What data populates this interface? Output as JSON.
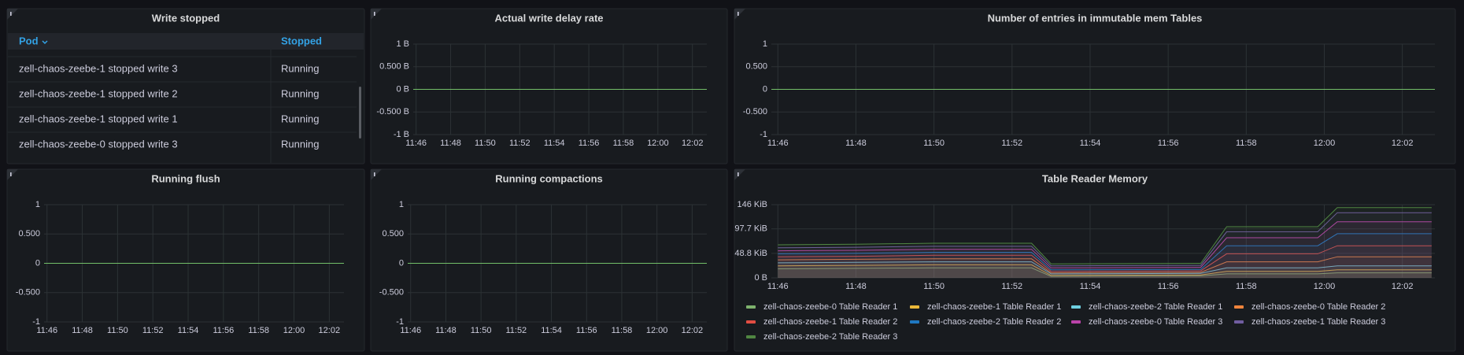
{
  "table_panel": {
    "title": "Write stopped",
    "columns": [
      "Pod",
      "Stopped"
    ],
    "rows": [
      [
        "zell-chaos-zeebe-1 stopped write 3",
        "Running"
      ],
      [
        "zell-chaos-zeebe-1 stopped write 2",
        "Running"
      ],
      [
        "zell-chaos-zeebe-1 stopped write 1",
        "Running"
      ],
      [
        "zell-chaos-zeebe-0 stopped write 3",
        "Running"
      ]
    ]
  },
  "chart_data": [
    {
      "type": "line",
      "title": "Actual write delay rate",
      "grid": true,
      "x": [
        "11:45:50",
        "12:02:50"
      ],
      "xlim": [
        "11:45:50",
        "12:02:50"
      ],
      "xticks": [
        "11:46",
        "11:48",
        "11:50",
        "11:52",
        "11:54",
        "11:56",
        "11:58",
        "12:00",
        "12:02"
      ],
      "ylim": [
        -1,
        1
      ],
      "yticks": [
        {
          "value": -1,
          "label": "-1 B"
        },
        {
          "value": -0.5,
          "label": "-0.500 B"
        },
        {
          "value": 0,
          "label": "0 B"
        },
        {
          "value": 0.5,
          "label": "0.500 B"
        },
        {
          "value": 1,
          "label": "1 B"
        }
      ],
      "series": [
        {
          "color": "#73bf69",
          "values": [
            0,
            0
          ]
        }
      ]
    },
    {
      "type": "line",
      "title": "Number of entries in immutable mem Tables",
      "grid": true,
      "x": [
        "11:45:50",
        "12:02:50"
      ],
      "xlim": [
        "11:45:50",
        "12:02:50"
      ],
      "xticks": [
        "11:46",
        "11:48",
        "11:50",
        "11:52",
        "11:54",
        "11:56",
        "11:58",
        "12:00",
        "12:02"
      ],
      "ylim": [
        -1,
        1
      ],
      "yticks": [
        -1,
        {
          "value": -0.5,
          "label": "-0.500"
        },
        0,
        {
          "value": 0.5,
          "label": "0.500"
        },
        1
      ],
      "series": [
        {
          "color": "#73bf69",
          "values": [
            0,
            0
          ]
        }
      ]
    },
    {
      "type": "line",
      "title": "Running flush",
      "grid": true,
      "x": [
        "11:45:50",
        "12:02:50"
      ],
      "xlim": [
        "11:45:50",
        "12:02:50"
      ],
      "xticks": [
        "11:46",
        "11:48",
        "11:50",
        "11:52",
        "11:54",
        "11:56",
        "11:58",
        "12:00",
        "12:02"
      ],
      "ylim": [
        -1,
        1
      ],
      "yticks": [
        -1,
        {
          "value": -0.5,
          "label": "-0.500"
        },
        0,
        {
          "value": 0.5,
          "label": "0.500"
        },
        1
      ],
      "series": [
        {
          "color": "#73bf69",
          "values": [
            0,
            0
          ]
        }
      ]
    },
    {
      "type": "line",
      "title": "Running compactions",
      "grid": true,
      "x": [
        "11:45:50",
        "12:02:50"
      ],
      "xlim": [
        "11:45:50",
        "12:02:50"
      ],
      "xticks": [
        "11:46",
        "11:48",
        "11:50",
        "11:52",
        "11:54",
        "11:56",
        "11:58",
        "12:00",
        "12:02"
      ],
      "ylim": [
        -1,
        1
      ],
      "yticks": [
        -1,
        {
          "value": -0.5,
          "label": "-0.500"
        },
        0,
        {
          "value": 0.5,
          "label": "0.500"
        },
        1
      ],
      "series": [
        {
          "color": "#73bf69",
          "values": [
            0,
            0
          ]
        }
      ]
    },
    {
      "type": "line",
      "title": "Table Reader Memory",
      "grid": true,
      "legend": "bottom",
      "x": [
        "11:46",
        "11:48",
        "11:50",
        "11:52:30",
        "11:53",
        "11:56:50",
        "11:57:30",
        "11:59:50",
        "12:00:20",
        "12:02:45"
      ],
      "xlim": [
        "11:45:50",
        "12:02:50"
      ],
      "xticks": [
        "11:46",
        "11:48",
        "11:50",
        "11:52",
        "11:54",
        "11:56",
        "11:58",
        "12:00",
        "12:02"
      ],
      "ylim": [
        0,
        146
      ],
      "yticks": [
        {
          "value": 0,
          "label": "0 B"
        },
        {
          "value": 48.8,
          "label": "48.8 KiB"
        },
        {
          "value": 97.7,
          "label": "97.7 KiB"
        },
        {
          "value": 146,
          "label": "146 KiB"
        }
      ],
      "series": [
        {
          "name": "zell-chaos-zeebe-0 Table Reader 1",
          "color": "#7eb26d",
          "values": [
            18,
            19,
            20,
            20,
            3,
            4,
            8,
            8,
            10,
            10
          ]
        },
        {
          "name": "zell-chaos-zeebe-1 Table Reader 1",
          "color": "#eab839",
          "values": [
            24,
            25,
            26,
            26,
            5,
            6,
            13,
            13,
            16,
            16
          ]
        },
        {
          "name": "zell-chaos-zeebe-2 Table Reader 1",
          "color": "#6ed0e0",
          "values": [
            30,
            31,
            32,
            32,
            8,
            9,
            20,
            20,
            24,
            24
          ]
        },
        {
          "name": "zell-chaos-zeebe-0 Table Reader 2",
          "color": "#ef843c",
          "values": [
            36,
            37,
            38,
            38,
            10,
            11,
            32,
            32,
            42,
            42
          ]
        },
        {
          "name": "zell-chaos-zeebe-1 Table Reader 2",
          "color": "#e24d42",
          "values": [
            42,
            43,
            45,
            45,
            13,
            14,
            48,
            48,
            64,
            64
          ]
        },
        {
          "name": "zell-chaos-zeebe-2 Table Reader 2",
          "color": "#1f78c1",
          "values": [
            48,
            49,
            51,
            51,
            16,
            17,
            64,
            64,
            88,
            88
          ]
        },
        {
          "name": "zell-chaos-zeebe-0 Table Reader 3",
          "color": "#ba43a9",
          "values": [
            54,
            55,
            57,
            57,
            20,
            21,
            80,
            80,
            112,
            112
          ]
        },
        {
          "name": "zell-chaos-zeebe-1 Table Reader 3",
          "color": "#705da0",
          "values": [
            60,
            61,
            63,
            63,
            24,
            25,
            92,
            92,
            130,
            130
          ]
        },
        {
          "name": "zell-chaos-zeebe-2 Table Reader 3",
          "color": "#508642",
          "values": [
            66,
            67,
            69,
            69,
            28,
            29,
            102,
            102,
            140,
            140
          ]
        }
      ]
    }
  ]
}
